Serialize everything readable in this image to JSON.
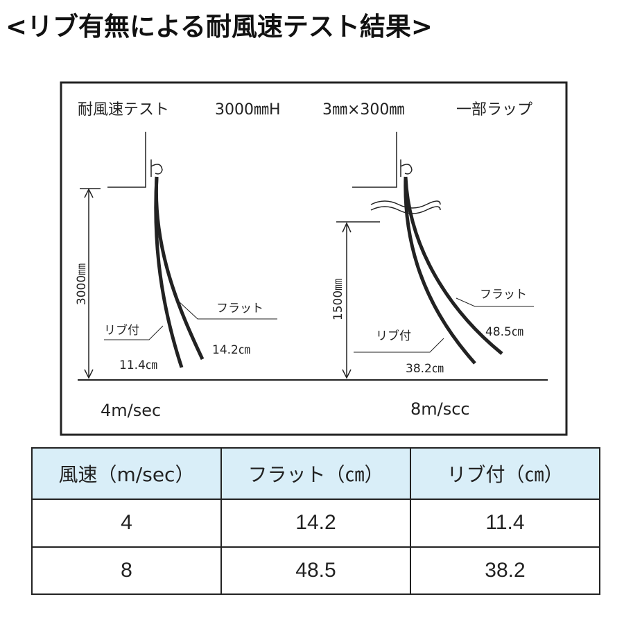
{
  "title": "<リブ有無による耐風速テスト結果>",
  "diagram": {
    "header": [
      "耐風速テスト",
      "3000㎜H",
      "3㎜×300㎜",
      "一部ラップ"
    ],
    "left": {
      "height": "3000㎜",
      "flat_label": "フラット",
      "rib_label": "リブ付",
      "flat_value": "14.2㎝",
      "rib_value": "11.4㎝",
      "speed": "4m/sec"
    },
    "right": {
      "height": "1500㎜",
      "flat_label": "フラット",
      "rib_label": "リブ付",
      "flat_value": "48.5㎝",
      "rib_value": "38.2㎝",
      "speed": "8m/scc"
    }
  },
  "table": {
    "header": [
      "風速（m/sec）",
      "フラット（㎝）",
      "リブ付（㎝）"
    ],
    "rows": [
      [
        "4",
        "14.2",
        "11.4"
      ],
      [
        "8",
        "48.5",
        "38.2"
      ]
    ]
  }
}
